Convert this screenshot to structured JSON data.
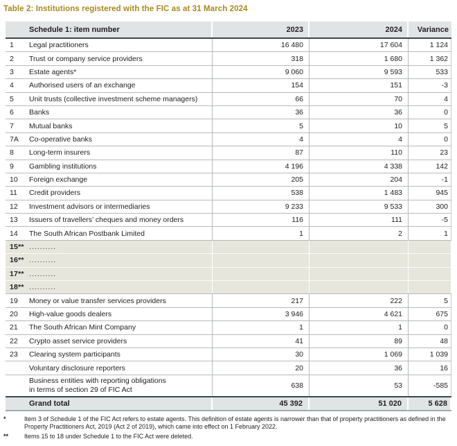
{
  "title": "Table 2: Institutions registered with the FIC as at 31 March 2024",
  "table": {
    "headers": {
      "item": "Schedule 1: item number",
      "y2023": "2023",
      "y2024": "2024",
      "variance": "Variance"
    },
    "rows": [
      {
        "n": "1",
        "label": "Legal practitioners",
        "y23": "16 480",
        "y24": "17 604",
        "v": "1 124"
      },
      {
        "n": "2",
        "label": "Trust or company service providers",
        "y23": "318",
        "y24": "1 680",
        "v": "1 362"
      },
      {
        "n": "3",
        "label": "Estate agents*",
        "y23": "9 060",
        "y24": "9 593",
        "v": "533"
      },
      {
        "n": "4",
        "label": "Authorised users of an exchange",
        "y23": "154",
        "y24": "151",
        "v": "-3"
      },
      {
        "n": "5",
        "label": "Unit trusts (collective investment scheme managers)",
        "y23": "66",
        "y24": "70",
        "v": "4"
      },
      {
        "n": "6",
        "label": "Banks",
        "y23": "36",
        "y24": "36",
        "v": "0"
      },
      {
        "n": "7",
        "label": "Mutual banks",
        "y23": "5",
        "y24": "10",
        "v": "5"
      },
      {
        "n": "7A",
        "label": "Co-operative banks",
        "y23": "4",
        "y24": "4",
        "v": "0"
      },
      {
        "n": "8",
        "label": "Long-term insurers",
        "y23": "87",
        "y24": "110",
        "v": "23"
      },
      {
        "n": "9",
        "label": "Gambling institutions",
        "y23": "4 196",
        "y24": "4 338",
        "v": "142"
      },
      {
        "n": "10",
        "label": "Foreign exchange",
        "y23": "205",
        "y24": "204",
        "v": "-1"
      },
      {
        "n": "11",
        "label": "Credit providers",
        "y23": "538",
        "y24": "1 483",
        "v": "945"
      },
      {
        "n": "12",
        "label": "Investment advisors or intermediaries",
        "y23": "9 233",
        "y24": "9 533",
        "v": "300"
      },
      {
        "n": "13",
        "label": "Issuers of travellers’ cheques and money orders",
        "y23": "116",
        "y24": "111",
        "v": "-5"
      },
      {
        "n": "14",
        "label": "The South African Postbank Limited",
        "y23": "1",
        "y24": "2",
        "v": "1"
      },
      {
        "n": "15**",
        "label": "..........",
        "deleted": true,
        "y23": "",
        "y24": "",
        "v": ""
      },
      {
        "n": "16**",
        "label": "..........",
        "deleted": true,
        "y23": "",
        "y24": "",
        "v": ""
      },
      {
        "n": "17**",
        "label": "..........",
        "deleted": true,
        "y23": "",
        "y24": "",
        "v": ""
      },
      {
        "n": "18**",
        "label": "..........",
        "deleted": true,
        "y23": "",
        "y24": "",
        "v": ""
      },
      {
        "n": "19",
        "label": "Money or value transfer services providers",
        "y23": "217",
        "y24": "222",
        "v": "5"
      },
      {
        "n": "20",
        "label": "High-value goods dealers",
        "y23": "3 946",
        "y24": "4 621",
        "v": "675"
      },
      {
        "n": "21",
        "label": "The South African Mint Company",
        "y23": "1",
        "y24": "1",
        "v": "0"
      },
      {
        "n": "22",
        "label": "Crypto asset service providers",
        "y23": "41",
        "y24": "89",
        "v": "48"
      },
      {
        "n": "23",
        "label": "Clearing system participants",
        "y23": "30",
        "y24": "1 069",
        "v": "1 039"
      },
      {
        "n": "",
        "label": "Voluntary disclosure reporters",
        "y23": "20",
        "y24": "36",
        "v": "16"
      },
      {
        "n": "",
        "label": "Business entities with reporting obligations",
        "label2": "in terms of section 29 of FIC Act",
        "y23": "638",
        "y24": "53",
        "v": "-585"
      }
    ],
    "grand_total": {
      "label": "Grand total",
      "y23": "45 392",
      "y24": "51 020",
      "v": "5 628"
    }
  },
  "footnotes": [
    {
      "marker": "*",
      "text": "Item 3 of Schedule 1 of the FIC Act refers to estate agents. This definition of estate agents is narrower than that of property practitioners as defined in the Property Practitioners Act, 2019 (Act 2 of 2019), which came into effect on 1 February 2022."
    },
    {
      "marker": "**",
      "text": "Items 15 to 18 under Schedule 1 to the FIC Act were deleted."
    }
  ],
  "colors": {
    "title_accent": "#a9881d",
    "header_bg": "#e0e4e5",
    "deleted_row_bg": "#e6e6dc",
    "row_border": "#b5babc",
    "dark_border": "#39464e",
    "text": "#232021"
  }
}
